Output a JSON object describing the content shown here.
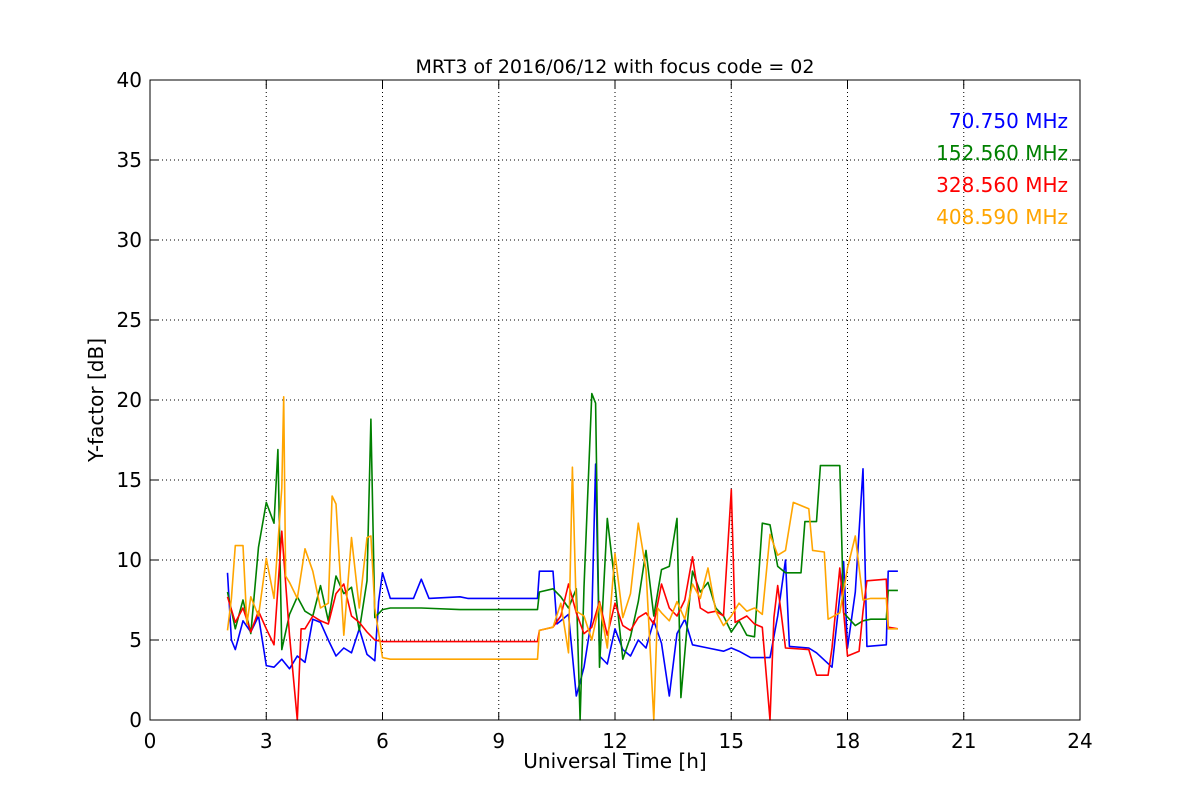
{
  "chart_data": {
    "type": "line",
    "title": "MRT3 of 2016/06/12 with focus code = 02",
    "xlabel": "Universal Time [h]",
    "ylabel": "Y-factor [dB]",
    "xlim": [
      0,
      24
    ],
    "ylim": [
      0,
      40
    ],
    "xticks": [
      0,
      3,
      6,
      9,
      12,
      15,
      18,
      21,
      24
    ],
    "yticks": [
      0,
      5,
      10,
      15,
      20,
      25,
      30,
      35,
      40
    ],
    "grid": true,
    "legend_position": "top-right",
    "series": [
      {
        "name": "70.750 MHz",
        "color": "#0000ff",
        "points": [
          [
            2.0,
            9.2
          ],
          [
            2.1,
            5.0
          ],
          [
            2.2,
            4.4
          ],
          [
            2.4,
            6.2
          ],
          [
            2.6,
            5.5
          ],
          [
            2.8,
            6.5
          ],
          [
            3.0,
            3.4
          ],
          [
            3.2,
            3.3
          ],
          [
            3.4,
            3.8
          ],
          [
            3.6,
            3.2
          ],
          [
            3.8,
            4.0
          ],
          [
            4.0,
            3.6
          ],
          [
            4.2,
            6.3
          ],
          [
            4.4,
            6.1
          ],
          [
            4.6,
            5.0
          ],
          [
            4.8,
            4.0
          ],
          [
            5.0,
            4.5
          ],
          [
            5.2,
            4.2
          ],
          [
            5.4,
            5.7
          ],
          [
            5.6,
            4.1
          ],
          [
            5.8,
            3.7
          ],
          [
            5.9,
            7.4
          ],
          [
            6.0,
            9.2
          ],
          [
            6.2,
            7.6
          ],
          [
            6.8,
            7.6
          ],
          [
            7.0,
            8.8
          ],
          [
            7.2,
            7.6
          ],
          [
            8.0,
            7.7
          ],
          [
            8.2,
            7.6
          ],
          [
            10.0,
            7.6
          ],
          [
            10.05,
            9.3
          ],
          [
            10.4,
            9.3
          ],
          [
            10.5,
            6.0
          ],
          [
            10.8,
            6.6
          ],
          [
            11.0,
            1.5
          ],
          [
            11.2,
            3.3
          ],
          [
            11.4,
            6.4
          ],
          [
            11.5,
            16.0
          ],
          [
            11.6,
            4.0
          ],
          [
            11.8,
            3.5
          ],
          [
            12.0,
            5.7
          ],
          [
            12.2,
            4.4
          ],
          [
            12.4,
            4.0
          ],
          [
            12.6,
            5.0
          ],
          [
            12.8,
            4.5
          ],
          [
            13.0,
            6.2
          ],
          [
            13.2,
            4.8
          ],
          [
            13.4,
            1.5
          ],
          [
            13.6,
            5.4
          ],
          [
            13.8,
            6.3
          ],
          [
            14.0,
            4.7
          ],
          [
            14.4,
            4.5
          ],
          [
            14.8,
            4.3
          ],
          [
            15.0,
            4.5
          ],
          [
            15.2,
            4.3
          ],
          [
            15.5,
            3.9
          ],
          [
            16.0,
            3.9
          ],
          [
            16.2,
            6.5
          ],
          [
            16.4,
            10.0
          ],
          [
            16.5,
            4.6
          ],
          [
            17.0,
            4.5
          ],
          [
            17.2,
            4.2
          ],
          [
            17.6,
            3.3
          ],
          [
            17.9,
            9.9
          ],
          [
            18.0,
            4.5
          ],
          [
            18.2,
            8.0
          ],
          [
            18.4,
            15.7
          ],
          [
            18.5,
            4.6
          ],
          [
            19.0,
            4.7
          ],
          [
            19.05,
            9.3
          ],
          [
            19.3,
            9.3
          ]
        ]
      },
      {
        "name": "152.560 MHz",
        "color": "#008000",
        "points": [
          [
            2.0,
            8.0
          ],
          [
            2.2,
            5.7
          ],
          [
            2.4,
            7.5
          ],
          [
            2.6,
            5.4
          ],
          [
            2.8,
            10.8
          ],
          [
            3.0,
            13.6
          ],
          [
            3.2,
            12.3
          ],
          [
            3.3,
            16.9
          ],
          [
            3.4,
            4.4
          ],
          [
            3.6,
            6.6
          ],
          [
            3.8,
            7.7
          ],
          [
            4.0,
            6.8
          ],
          [
            4.2,
            6.5
          ],
          [
            4.4,
            8.4
          ],
          [
            4.6,
            6.2
          ],
          [
            4.8,
            9.0
          ],
          [
            5.0,
            7.9
          ],
          [
            5.2,
            8.3
          ],
          [
            5.4,
            5.6
          ],
          [
            5.6,
            8.7
          ],
          [
            5.7,
            18.8
          ],
          [
            5.8,
            6.4
          ],
          [
            6.0,
            6.9
          ],
          [
            6.2,
            7.0
          ],
          [
            7.0,
            7.0
          ],
          [
            8.0,
            6.9
          ],
          [
            10.0,
            6.9
          ],
          [
            10.05,
            8.0
          ],
          [
            10.4,
            8.2
          ],
          [
            10.6,
            7.7
          ],
          [
            10.8,
            7.0
          ],
          [
            11.0,
            8.2
          ],
          [
            11.1,
            0.0
          ],
          [
            11.2,
            8.3
          ],
          [
            11.4,
            20.4
          ],
          [
            11.5,
            19.8
          ],
          [
            11.6,
            3.3
          ],
          [
            11.8,
            12.6
          ],
          [
            12.0,
            8.5
          ],
          [
            12.2,
            3.8
          ],
          [
            12.4,
            5.2
          ],
          [
            12.6,
            7.4
          ],
          [
            12.8,
            10.6
          ],
          [
            13.0,
            6.5
          ],
          [
            13.2,
            9.4
          ],
          [
            13.4,
            9.6
          ],
          [
            13.6,
            12.6
          ],
          [
            13.7,
            1.4
          ],
          [
            13.9,
            6.9
          ],
          [
            14.0,
            9.3
          ],
          [
            14.2,
            8.0
          ],
          [
            14.4,
            8.6
          ],
          [
            14.6,
            7.0
          ],
          [
            14.8,
            6.5
          ],
          [
            15.0,
            5.5
          ],
          [
            15.2,
            6.2
          ],
          [
            15.4,
            5.3
          ],
          [
            15.6,
            5.2
          ],
          [
            15.8,
            12.3
          ],
          [
            16.0,
            12.2
          ],
          [
            16.2,
            9.6
          ],
          [
            16.4,
            9.2
          ],
          [
            16.6,
            9.2
          ],
          [
            16.8,
            9.2
          ],
          [
            16.9,
            12.4
          ],
          [
            17.2,
            12.4
          ],
          [
            17.3,
            15.9
          ],
          [
            17.8,
            15.9
          ],
          [
            17.9,
            6.7
          ],
          [
            18.2,
            5.9
          ],
          [
            18.4,
            6.2
          ],
          [
            18.6,
            6.3
          ],
          [
            19.0,
            6.3
          ],
          [
            19.05,
            8.1
          ],
          [
            19.3,
            8.1
          ]
        ]
      },
      {
        "name": "328.560 MHz",
        "color": "#ff0000",
        "points": [
          [
            2.0,
            7.7
          ],
          [
            2.2,
            6.1
          ],
          [
            2.4,
            7.0
          ],
          [
            2.6,
            5.5
          ],
          [
            2.8,
            6.8
          ],
          [
            3.0,
            5.7
          ],
          [
            3.2,
            4.7
          ],
          [
            3.4,
            11.8
          ],
          [
            3.6,
            5.3
          ],
          [
            3.8,
            0.0
          ],
          [
            3.9,
            5.7
          ],
          [
            4.0,
            5.7
          ],
          [
            4.2,
            6.5
          ],
          [
            4.4,
            6.2
          ],
          [
            4.6,
            6.0
          ],
          [
            4.8,
            7.9
          ],
          [
            5.0,
            8.5
          ],
          [
            5.2,
            6.5
          ],
          [
            5.4,
            6.1
          ],
          [
            5.6,
            5.5
          ],
          [
            5.8,
            5.0
          ],
          [
            6.0,
            4.9
          ],
          [
            6.2,
            4.9
          ],
          [
            7.0,
            4.9
          ],
          [
            8.0,
            4.9
          ],
          [
            10.0,
            4.9
          ],
          [
            10.05,
            5.6
          ],
          [
            10.4,
            5.8
          ],
          [
            10.6,
            6.5
          ],
          [
            10.8,
            8.5
          ],
          [
            11.0,
            6.7
          ],
          [
            11.2,
            5.4
          ],
          [
            11.4,
            5.8
          ],
          [
            11.6,
            7.4
          ],
          [
            11.8,
            5.3
          ],
          [
            12.0,
            7.3
          ],
          [
            12.2,
            5.9
          ],
          [
            12.4,
            5.6
          ],
          [
            12.6,
            6.4
          ],
          [
            12.8,
            6.7
          ],
          [
            13.0,
            6.0
          ],
          [
            13.2,
            8.5
          ],
          [
            13.4,
            7.0
          ],
          [
            13.6,
            6.5
          ],
          [
            13.8,
            7.5
          ],
          [
            14.0,
            10.2
          ],
          [
            14.2,
            7.0
          ],
          [
            14.4,
            6.7
          ],
          [
            14.6,
            6.8
          ],
          [
            14.8,
            6.5
          ],
          [
            15.0,
            14.4
          ],
          [
            15.1,
            6.1
          ],
          [
            15.4,
            6.5
          ],
          [
            15.6,
            6.0
          ],
          [
            15.8,
            5.8
          ],
          [
            16.0,
            0.0
          ],
          [
            16.1,
            6.4
          ],
          [
            16.2,
            8.4
          ],
          [
            16.4,
            4.5
          ],
          [
            17.0,
            4.4
          ],
          [
            17.2,
            2.8
          ],
          [
            17.5,
            2.8
          ],
          [
            17.6,
            4.5
          ],
          [
            17.8,
            9.5
          ],
          [
            18.0,
            4.0
          ],
          [
            18.3,
            4.3
          ],
          [
            18.4,
            6.8
          ],
          [
            18.5,
            8.7
          ],
          [
            19.0,
            8.8
          ],
          [
            19.05,
            5.8
          ],
          [
            19.3,
            5.7
          ]
        ]
      },
      {
        "name": "408.590 MHz",
        "color": "#ffa500",
        "points": [
          [
            2.0,
            5.6
          ],
          [
            2.1,
            7.6
          ],
          [
            2.2,
            10.9
          ],
          [
            2.4,
            10.9
          ],
          [
            2.5,
            6.0
          ],
          [
            2.6,
            7.7
          ],
          [
            2.8,
            6.5
          ],
          [
            3.0,
            10.1
          ],
          [
            3.2,
            7.6
          ],
          [
            3.4,
            14.5
          ],
          [
            3.45,
            20.2
          ],
          [
            3.5,
            9.0
          ],
          [
            3.6,
            8.6
          ],
          [
            3.8,
            7.6
          ],
          [
            4.0,
            10.7
          ],
          [
            4.2,
            9.3
          ],
          [
            4.4,
            7.0
          ],
          [
            4.6,
            7.3
          ],
          [
            4.7,
            14.0
          ],
          [
            4.8,
            13.5
          ],
          [
            5.0,
            5.3
          ],
          [
            5.2,
            11.4
          ],
          [
            5.4,
            7.0
          ],
          [
            5.6,
            11.4
          ],
          [
            5.7,
            11.5
          ],
          [
            5.8,
            7.0
          ],
          [
            6.0,
            3.9
          ],
          [
            6.2,
            3.8
          ],
          [
            7.0,
            3.8
          ],
          [
            8.0,
            3.8
          ],
          [
            10.0,
            3.8
          ],
          [
            10.05,
            5.6
          ],
          [
            10.4,
            5.8
          ],
          [
            10.6,
            7.3
          ],
          [
            10.8,
            4.2
          ],
          [
            10.9,
            15.8
          ],
          [
            11.0,
            6.8
          ],
          [
            11.2,
            6.5
          ],
          [
            11.4,
            5.0
          ],
          [
            11.6,
            7.3
          ],
          [
            11.8,
            4.5
          ],
          [
            12.0,
            10.4
          ],
          [
            12.2,
            6.4
          ],
          [
            12.4,
            7.9
          ],
          [
            12.6,
            12.3
          ],
          [
            12.8,
            9.4
          ],
          [
            13.0,
            0.0
          ],
          [
            13.1,
            7.0
          ],
          [
            13.2,
            6.7
          ],
          [
            13.4,
            6.2
          ],
          [
            13.6,
            7.4
          ],
          [
            13.8,
            6.3
          ],
          [
            14.0,
            8.5
          ],
          [
            14.2,
            7.6
          ],
          [
            14.4,
            9.5
          ],
          [
            14.6,
            6.8
          ],
          [
            14.8,
            5.9
          ],
          [
            15.0,
            6.5
          ],
          [
            15.2,
            7.3
          ],
          [
            15.4,
            6.8
          ],
          [
            15.6,
            7.0
          ],
          [
            15.8,
            6.6
          ],
          [
            16.0,
            11.6
          ],
          [
            16.2,
            10.3
          ],
          [
            16.4,
            10.6
          ],
          [
            16.6,
            13.6
          ],
          [
            17.0,
            13.2
          ],
          [
            17.1,
            10.6
          ],
          [
            17.4,
            10.5
          ],
          [
            17.5,
            6.3
          ],
          [
            17.8,
            6.7
          ],
          [
            18.0,
            9.5
          ],
          [
            18.2,
            11.5
          ],
          [
            18.4,
            7.5
          ],
          [
            18.6,
            7.6
          ],
          [
            19.0,
            7.6
          ],
          [
            19.05,
            5.7
          ],
          [
            19.3,
            5.7
          ]
        ]
      }
    ]
  }
}
